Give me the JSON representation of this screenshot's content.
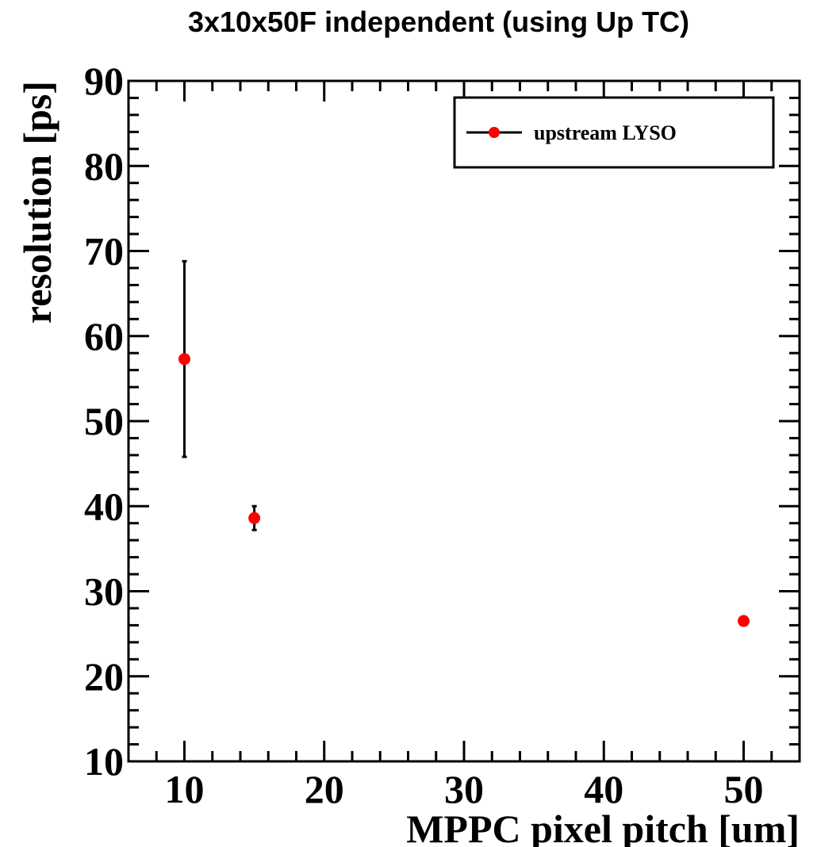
{
  "chart_data": {
    "type": "scatter",
    "title": "3x10x50F independent (using Up TC)",
    "xlabel": "MPPC pixel pitch [um]",
    "ylabel": "resolution [ps]",
    "xlim": [
      6,
      54
    ],
    "ylim": [
      10,
      90
    ],
    "x_major_ticks": [
      10,
      20,
      30,
      40,
      50
    ],
    "x_tick_labels": [
      "10",
      "20",
      "30",
      "40",
      "50"
    ],
    "x_minor_step": 2,
    "y_major_ticks": [
      10,
      20,
      30,
      40,
      50,
      60,
      70,
      80,
      90
    ],
    "y_tick_labels": [
      "10",
      "20",
      "30",
      "40",
      "50",
      "60",
      "70",
      "80",
      "90"
    ],
    "y_minor_step": 2,
    "grid": false,
    "legend_position": "top-right",
    "series": [
      {
        "name": "upstream LYSO",
        "color": "#ff0000",
        "x": [
          10,
          15,
          50
        ],
        "y": [
          57.3,
          38.6,
          26.5
        ],
        "y_err": [
          11.5,
          1.4,
          0.4
        ]
      }
    ]
  }
}
